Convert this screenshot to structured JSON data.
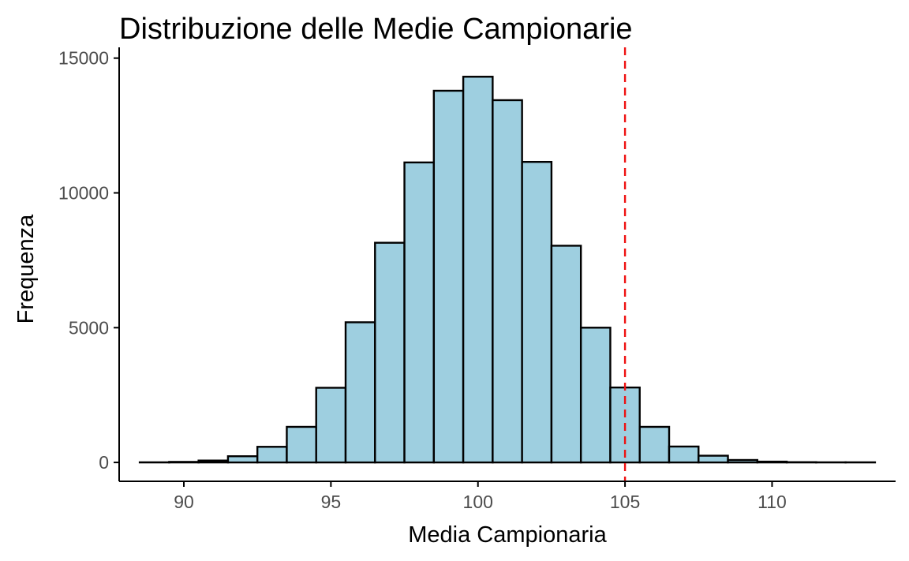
{
  "chart_data": {
    "type": "bar",
    "title": "Distribuzione delle Medie Campionarie",
    "xlabel": "Media Campionaria",
    "ylabel": "Frequenza",
    "xlim": [
      87.8,
      114.2
    ],
    "ylim": [
      -700,
      15400
    ],
    "x_ticks": [
      90,
      95,
      100,
      105,
      110
    ],
    "y_ticks": [
      0,
      5000,
      10000,
      15000
    ],
    "bin_width": 1,
    "bin_centers": [
      89,
      90,
      91,
      92,
      93,
      94,
      95,
      96,
      97,
      98,
      99,
      100,
      101,
      102,
      103,
      104,
      105,
      106,
      107,
      108,
      109,
      110,
      111,
      112,
      113
    ],
    "values": [
      5,
      20,
      70,
      230,
      580,
      1320,
      2770,
      5200,
      8150,
      11130,
      13790,
      14310,
      13440,
      11150,
      8040,
      5000,
      2780,
      1320,
      590,
      250,
      90,
      30,
      10,
      5,
      5
    ],
    "reference_line": {
      "x": 105,
      "style": "dashed",
      "color": "#ee1111"
    },
    "bar_fill": "#9ecfe0",
    "bar_edge": "#000000",
    "grid": false,
    "legend": "none"
  }
}
